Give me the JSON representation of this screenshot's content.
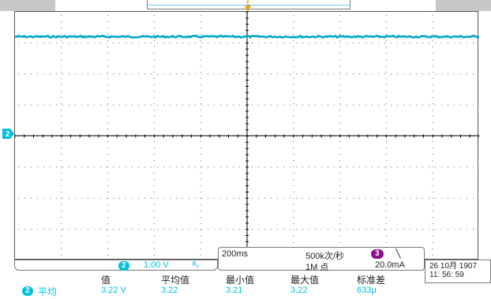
{
  "colors": {
    "channel2": "#00c0e0",
    "trigger": "#f0a020",
    "ch3_badge": "#8a0f8a"
  },
  "icons": {
    "trigger_position": "orange-triangle-marker-icon",
    "ch2_ground": "channel-2-ground-marker-icon",
    "bandwidth_limit": "bandwidth-limit-icon",
    "trigger_slope": "falling-slope-icon"
  },
  "waveform": {
    "channel": "2",
    "level_divisions_above_center": 3.2
  },
  "status": {
    "channel_badge": "2",
    "vertical_scale": "1.00 V",
    "bw_symbol": "ᴮᵥ"
  },
  "acquisition": {
    "timebase": "200ms",
    "sample_rate": "500k次/秒",
    "record_length": "1M 点",
    "trigger_source_badge": "3",
    "trigger_slope_symbol": "╲",
    "trigger_level": "20.0mA"
  },
  "datetime": {
    "date": "26 10月 1907",
    "time": "11: 56: 59"
  },
  "measurements": {
    "source_badge": "2",
    "source_label": "平均",
    "headers": [
      "值",
      "平均值",
      "最小值",
      "最大值",
      "标准差"
    ],
    "values": [
      "3.22 V",
      "3.22",
      "3.21",
      "3.22",
      "633μ"
    ]
  }
}
